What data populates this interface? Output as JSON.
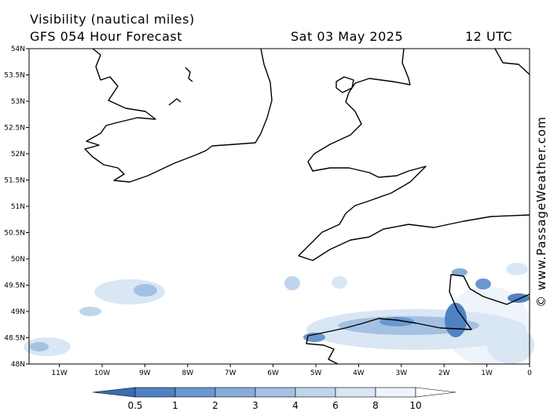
{
  "header": {
    "title": "Visibility (nautical miles)",
    "subtitle": "GFS 054 Hour Forecast",
    "date": "Sat 03 May 2025",
    "time": "12 UTC"
  },
  "map": {
    "lat_labels": [
      "54N",
      "53.5N",
      "53N",
      "52.5N",
      "52N",
      "51.5N",
      "51N",
      "50.5N",
      "50N",
      "49.5N",
      "49N",
      "48.5N",
      "48N"
    ],
    "lon_labels": [
      "11W",
      "10W",
      "9W",
      "8W",
      "7W",
      "6W",
      "5W",
      "4W",
      "3W",
      "2W",
      "1W",
      "0"
    ]
  },
  "legend": {
    "ticks": [
      0.5,
      1,
      2,
      3,
      4,
      6,
      8,
      10
    ],
    "colors": [
      "#3b6db3",
      "#4f82c2",
      "#6a97cf",
      "#86acd9",
      "#a3c1e3",
      "#bfd5ec",
      "#d9e6f4",
      "#eef4fa",
      "#ffffff"
    ]
  },
  "credit": "© www.PassageWeather.com"
}
